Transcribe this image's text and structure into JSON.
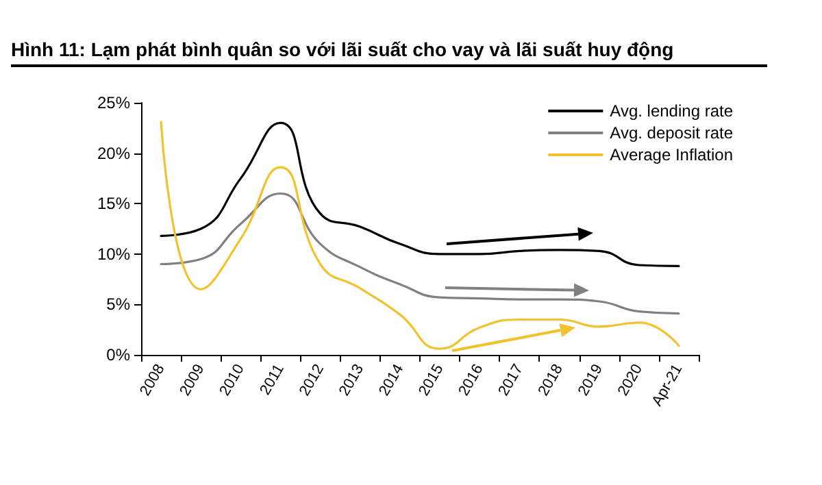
{
  "chart_data": {
    "type": "line",
    "title": "Hình 11: Lạm phát bình quân so với lãi suất cho vay và lãi suất huy động",
    "categories": [
      "2008",
      "2009",
      "2010",
      "2011",
      "2012",
      "2013",
      "2014",
      "2015",
      "2016",
      "2017",
      "2018",
      "2019",
      "2020",
      "Apr-21"
    ],
    "series": [
      {
        "name": "Avg. lending rate",
        "color": "#000000",
        "values": [
          11.8,
          12.5,
          17.5,
          23,
          14,
          12.7,
          11,
          10,
          10,
          10.3,
          10.4,
          10.3,
          8.9,
          8.8
        ]
      },
      {
        "name": "Avg. deposit rate",
        "color": "#808080",
        "values": [
          9,
          9.5,
          13,
          16,
          11,
          8.7,
          7,
          5.7,
          5.6,
          5.5,
          5.5,
          5.3,
          4.3,
          4.1
        ]
      },
      {
        "name": "Average Inflation",
        "color": "#f2c12e",
        "values": [
          23.1,
          6.5,
          11.5,
          18.6,
          9,
          6.6,
          4,
          0.6,
          2.7,
          3.5,
          3.5,
          2.8,
          3.2,
          0.9
        ]
      }
    ],
    "ylim": [
      0,
      25
    ],
    "yticks": [
      {
        "value": 0,
        "label": "0%"
      },
      {
        "value": 5,
        "label": "5%"
      },
      {
        "value": 10,
        "label": "10%"
      },
      {
        "value": 15,
        "label": "15%"
      },
      {
        "value": 20,
        "label": "20%"
      },
      {
        "value": 25,
        "label": "25%"
      }
    ],
    "grid": false,
    "legend": "top right",
    "marker": "none",
    "line_style": "solid"
  }
}
